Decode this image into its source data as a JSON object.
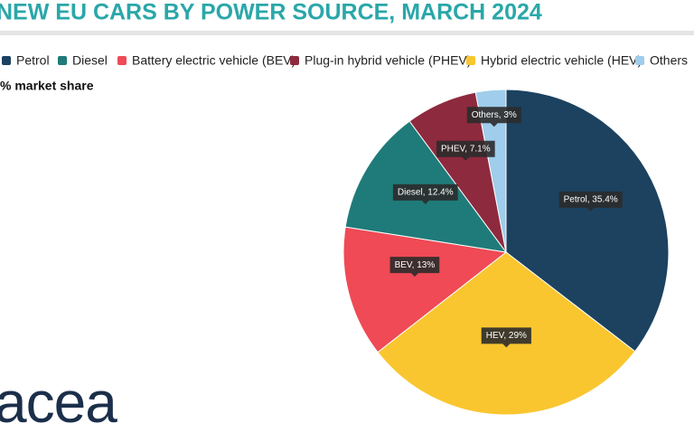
{
  "chart_data": {
    "type": "pie",
    "title": "NEW EU CARS BY POWER SOURCE, MARCH 2024",
    "subtitle": "% market share",
    "logo": "acea",
    "categories": [
      "Petrol",
      "Hybrid electric vehicle (HEV)",
      "Battery electric vehicle (BEV)",
      "Diesel",
      "Plug-in hybrid vehicle (PHEV)",
      "Others"
    ],
    "values": [
      35.4,
      29,
      13,
      12.4,
      7.1,
      3
    ],
    "value_labels": [
      "Petrol, 35.4%",
      "HEV, 29%",
      "BEV, 13%",
      "Diesel, 12.4%",
      "PHEV, 7.1%",
      "Others, 3%"
    ],
    "colors": [
      "#1c4260",
      "#f9c62f",
      "#ef4a56",
      "#1f7b79",
      "#8e2a3e",
      "#9fcdeb"
    ],
    "legend": "top"
  }
}
